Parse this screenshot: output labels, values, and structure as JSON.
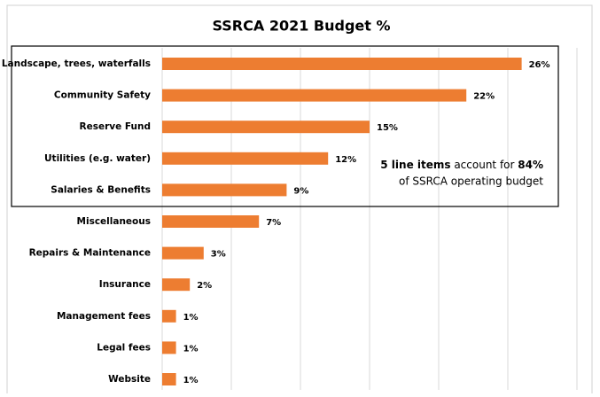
{
  "chart_data": {
    "type": "bar",
    "orientation": "horizontal",
    "title": "SSRCA 2021 Budget %",
    "categories": [
      "Landscape, trees, waterfalls",
      "Community Safety",
      "Reserve Fund",
      "Utilities (e.g. water)",
      "Salaries & Benefits",
      "Miscellaneous",
      "Repairs & Maintenance",
      "Insurance",
      "Management fees",
      "Legal fees",
      "Website"
    ],
    "values": [
      26,
      22,
      15,
      12,
      9,
      7,
      3,
      2,
      1,
      1,
      1
    ],
    "value_labels": [
      "26%",
      "22%",
      "15%",
      "12%",
      "9%",
      "7%",
      "3%",
      "2%",
      "1%",
      "1%",
      "1%"
    ],
    "color": "#ed7d31",
    "xlim": [
      0,
      30
    ],
    "xticks": [
      0,
      5,
      10,
      15,
      20,
      25,
      30
    ],
    "grid": true,
    "annotation": [
      "5 line items",
      " account for ",
      "84%",
      "of SSRCA operating budget"
    ]
  }
}
